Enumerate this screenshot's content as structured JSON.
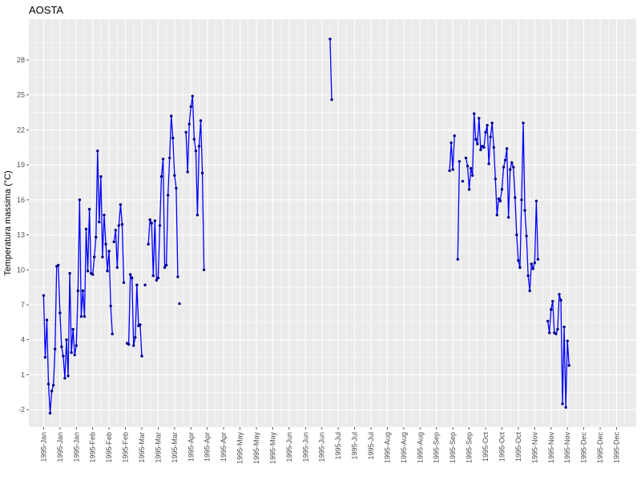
{
  "chart_data": {
    "type": "line",
    "title": "AOSTA",
    "xlabel": "",
    "ylabel": "Temperatura massima  (°C)",
    "x_unit": "date",
    "xlim": [
      "1994-12-23",
      "1995-12-29"
    ],
    "ylim": [
      -3.5,
      31.5
    ],
    "y_ticks": [
      -2,
      1,
      4,
      7,
      10,
      13,
      16,
      19,
      22,
      25,
      28
    ],
    "x_ticks": [
      {
        "date": "1995-01-01",
        "label": "1995-Jan"
      },
      {
        "date": "1995-01-11",
        "label": "1995-Jan"
      },
      {
        "date": "1995-01-21",
        "label": "1995-Jan"
      },
      {
        "date": "1995-01-31",
        "label": "1995-Feb"
      },
      {
        "date": "1995-02-10",
        "label": "1995-Feb"
      },
      {
        "date": "1995-02-20",
        "label": "1995-Feb"
      },
      {
        "date": "1995-03-02",
        "label": "1995-Mar"
      },
      {
        "date": "1995-03-12",
        "label": "1995-Mar"
      },
      {
        "date": "1995-03-22",
        "label": "1995-Mar"
      },
      {
        "date": "1995-04-01",
        "label": "1995-Apr"
      },
      {
        "date": "1995-04-11",
        "label": "1995-Apr"
      },
      {
        "date": "1995-04-21",
        "label": "1995-Apr"
      },
      {
        "date": "1995-05-01",
        "label": "1995-May"
      },
      {
        "date": "1995-05-11",
        "label": "1995-May"
      },
      {
        "date": "1995-05-21",
        "label": "1995-May"
      },
      {
        "date": "1995-05-31",
        "label": "1995-Jun"
      },
      {
        "date": "1995-06-10",
        "label": "1995-Jun"
      },
      {
        "date": "1995-06-20",
        "label": "1995-Jun"
      },
      {
        "date": "1995-06-30",
        "label": "1995-Jul"
      },
      {
        "date": "1995-07-10",
        "label": "1995-Jul"
      },
      {
        "date": "1995-07-20",
        "label": "1995-Jul"
      },
      {
        "date": "1995-07-30",
        "label": "1995-Aug"
      },
      {
        "date": "1995-08-09",
        "label": "1995-Aug"
      },
      {
        "date": "1995-08-19",
        "label": "1995-Aug"
      },
      {
        "date": "1995-08-29",
        "label": "1995-Sep"
      },
      {
        "date": "1995-09-08",
        "label": "1995-Sep"
      },
      {
        "date": "1995-09-18",
        "label": "1995-Sep"
      },
      {
        "date": "1995-09-28",
        "label": "1995-Oct"
      },
      {
        "date": "1995-10-08",
        "label": "1995-Oct"
      },
      {
        "date": "1995-10-18",
        "label": "1995-Oct"
      },
      {
        "date": "1995-10-28",
        "label": "1995-Nov"
      },
      {
        "date": "1995-11-07",
        "label": "1995-Nov"
      },
      {
        "date": "1995-11-17",
        "label": "1995-Nov"
      },
      {
        "date": "1995-11-27",
        "label": "1995-Dec"
      },
      {
        "date": "1995-12-07",
        "label": "1995-Dec"
      },
      {
        "date": "1995-12-17",
        "label": "1995-Dec"
      }
    ],
    "grid": true,
    "line_color": "#0000ff",
    "point_color": "#00008b",
    "panel_color": "#ebebeb",
    "series": [
      {
        "points": [
          [
            "1995-01-01",
            7.8
          ],
          [
            "1995-01-02",
            2.5
          ],
          [
            "1995-01-03",
            5.7
          ],
          [
            "1995-01-04",
            0.2
          ],
          [
            "1995-01-05",
            -2.3
          ],
          [
            "1995-01-06",
            -0.4
          ],
          [
            "1995-01-07",
            0.1
          ],
          [
            "1995-01-08",
            3.2
          ],
          [
            "1995-01-09",
            10.3
          ],
          [
            "1995-01-10",
            10.4
          ],
          [
            "1995-01-11",
            6.3
          ],
          [
            "1995-01-12",
            3.4
          ],
          [
            "1995-01-13",
            2.6
          ],
          [
            "1995-01-14",
            0.7
          ],
          [
            "1995-01-15",
            4.0
          ],
          [
            "1995-01-16",
            0.9
          ],
          [
            "1995-01-17",
            9.7
          ],
          [
            "1995-01-18",
            2.9
          ],
          [
            "1995-01-19",
            4.9
          ],
          [
            "1995-01-20",
            2.7
          ],
          [
            "1995-01-21",
            3.5
          ],
          [
            "1995-01-22",
            8.2
          ],
          [
            "1995-01-23",
            16.0
          ],
          [
            "1995-01-24",
            6.0
          ],
          [
            "1995-01-25",
            8.2
          ],
          [
            "1995-01-26",
            6.0
          ],
          [
            "1995-01-27",
            13.5
          ],
          [
            "1995-01-28",
            9.9
          ],
          [
            "1995-01-29",
            15.2
          ],
          [
            "1995-01-30",
            9.7
          ],
          [
            "1995-01-31",
            9.6
          ],
          [
            "1995-02-01",
            11.1
          ],
          [
            "1995-02-02",
            12.8
          ],
          [
            "1995-02-03",
            20.2
          ],
          [
            "1995-02-04",
            14.1
          ],
          [
            "1995-02-05",
            18.0
          ],
          [
            "1995-02-06",
            11.1
          ],
          [
            "1995-02-07",
            14.7
          ],
          [
            "1995-02-08",
            12.2
          ],
          [
            "1995-02-09",
            9.9
          ],
          [
            "1995-02-10",
            11.6
          ],
          [
            "1995-02-11",
            6.9
          ],
          [
            "1995-02-12",
            4.5
          ]
        ]
      },
      {
        "points": [
          [
            "1995-02-13",
            12.4
          ],
          [
            "1995-02-14",
            13.4
          ],
          [
            "1995-02-15",
            10.2
          ],
          [
            "1995-02-16",
            13.8
          ],
          [
            "1995-02-17",
            15.6
          ],
          [
            "1995-02-18",
            13.9
          ],
          [
            "1995-02-19",
            8.9
          ]
        ]
      },
      {
        "points": [
          [
            "1995-02-21",
            3.7
          ],
          [
            "1995-02-22",
            3.6
          ],
          [
            "1995-02-23",
            9.6
          ],
          [
            "1995-02-24",
            9.3
          ],
          [
            "1995-02-25",
            3.5
          ],
          [
            "1995-02-26",
            4.2
          ],
          [
            "1995-02-27",
            8.7
          ],
          [
            "1995-02-28",
            5.2
          ],
          [
            "1995-03-01",
            5.3
          ],
          [
            "1995-03-02",
            2.6
          ]
        ]
      },
      {
        "points": [
          [
            "1995-03-04",
            8.7
          ]
        ]
      },
      {
        "points": [
          [
            "1995-03-06",
            12.2
          ],
          [
            "1995-03-07",
            14.3
          ],
          [
            "1995-03-08",
            14.0
          ],
          [
            "1995-03-09",
            9.5
          ],
          [
            "1995-03-10",
            14.2
          ],
          [
            "1995-03-11",
            9.1
          ],
          [
            "1995-03-12",
            9.3
          ],
          [
            "1995-03-13",
            13.8
          ],
          [
            "1995-03-14",
            18.0
          ],
          [
            "1995-03-15",
            19.5
          ],
          [
            "1995-03-16",
            10.2
          ],
          [
            "1995-03-17",
            10.4
          ],
          [
            "1995-03-18",
            16.4
          ],
          [
            "1995-03-19",
            19.6
          ],
          [
            "1995-03-20",
            23.2
          ],
          [
            "1995-03-21",
            21.3
          ],
          [
            "1995-03-22",
            18.1
          ],
          [
            "1995-03-23",
            17.0
          ],
          [
            "1995-03-24",
            9.4
          ]
        ]
      },
      {
        "points": [
          [
            "1995-03-25",
            7.1
          ]
        ]
      },
      {
        "points": [
          [
            "1995-03-29",
            21.8
          ],
          [
            "1995-03-30",
            18.4
          ],
          [
            "1995-03-31",
            22.5
          ],
          [
            "1995-04-01",
            24.0
          ],
          [
            "1995-04-02",
            24.9
          ],
          [
            "1995-04-03",
            21.2
          ],
          [
            "1995-04-04",
            20.2
          ],
          [
            "1995-04-05",
            14.7
          ],
          [
            "1995-04-06",
            20.6
          ],
          [
            "1995-04-07",
            22.8
          ],
          [
            "1995-04-08",
            18.3
          ],
          [
            "1995-04-09",
            10.0
          ]
        ]
      },
      {
        "points": [
          [
            "1995-06-25",
            29.8
          ],
          [
            "1995-06-26",
            24.6
          ]
        ]
      },
      {
        "points": [
          [
            "1995-09-06",
            18.5
          ],
          [
            "1995-09-07",
            20.9
          ],
          [
            "1995-09-08",
            18.6
          ],
          [
            "1995-09-09",
            21.5
          ]
        ]
      },
      {
        "points": [
          [
            "1995-09-11",
            10.9
          ],
          [
            "1995-09-12",
            19.3
          ]
        ]
      },
      {
        "points": [
          [
            "1995-09-14",
            17.6
          ]
        ]
      },
      {
        "points": [
          [
            "1995-09-16",
            19.6
          ],
          [
            "1995-09-17",
            18.9
          ],
          [
            "1995-09-18",
            16.9
          ],
          [
            "1995-09-19",
            18.7
          ],
          [
            "1995-09-20",
            18.1
          ],
          [
            "1995-09-21",
            23.4
          ],
          [
            "1995-09-22",
            21.2
          ],
          [
            "1995-09-23",
            20.8
          ],
          [
            "1995-09-24",
            23.0
          ],
          [
            "1995-09-25",
            20.3
          ],
          [
            "1995-09-26",
            20.6
          ],
          [
            "1995-09-27",
            20.5
          ],
          [
            "1995-09-28",
            21.8
          ],
          [
            "1995-09-29",
            22.4
          ],
          [
            "1995-09-30",
            19.1
          ],
          [
            "1995-10-01",
            21.4
          ],
          [
            "1995-10-02",
            22.6
          ],
          [
            "1995-10-03",
            20.5
          ],
          [
            "1995-10-04",
            17.8
          ],
          [
            "1995-10-05",
            14.7
          ],
          [
            "1995-10-06",
            16.1
          ],
          [
            "1995-10-07",
            15.9
          ],
          [
            "1995-10-08",
            16.9
          ],
          [
            "1995-10-09",
            18.8
          ],
          [
            "1995-10-10",
            19.4
          ],
          [
            "1995-10-11",
            20.4
          ],
          [
            "1995-10-12",
            14.5
          ],
          [
            "1995-10-13",
            18.6
          ],
          [
            "1995-10-14",
            19.2
          ],
          [
            "1995-10-15",
            18.8
          ],
          [
            "1995-10-16",
            16.2
          ],
          [
            "1995-10-17",
            13.0
          ],
          [
            "1995-10-18",
            10.8
          ],
          [
            "1995-10-19",
            10.2
          ],
          [
            "1995-10-20",
            16.0
          ],
          [
            "1995-10-21",
            22.6
          ],
          [
            "1995-10-22",
            15.1
          ],
          [
            "1995-10-23",
            12.9
          ],
          [
            "1995-10-24",
            9.5
          ],
          [
            "1995-10-25",
            8.2
          ],
          [
            "1995-10-26",
            10.5
          ],
          [
            "1995-10-27",
            10.1
          ],
          [
            "1995-10-28",
            10.6
          ],
          [
            "1995-10-29",
            15.9
          ],
          [
            "1995-10-30",
            10.9
          ]
        ]
      },
      {
        "points": [
          [
            "1995-11-05",
            5.6
          ],
          [
            "1995-11-06",
            4.6
          ],
          [
            "1995-11-07",
            6.6
          ],
          [
            "1995-11-08",
            7.3
          ],
          [
            "1995-11-09",
            4.6
          ],
          [
            "1995-11-10",
            4.5
          ],
          [
            "1995-11-11",
            4.9
          ],
          [
            "1995-11-12",
            7.9
          ],
          [
            "1995-11-13",
            7.4
          ],
          [
            "1995-11-14",
            -1.5
          ],
          [
            "1995-11-15",
            5.1
          ],
          [
            "1995-11-16",
            -1.8
          ],
          [
            "1995-11-17",
            3.9
          ],
          [
            "1995-11-18",
            1.8
          ]
        ]
      }
    ]
  }
}
